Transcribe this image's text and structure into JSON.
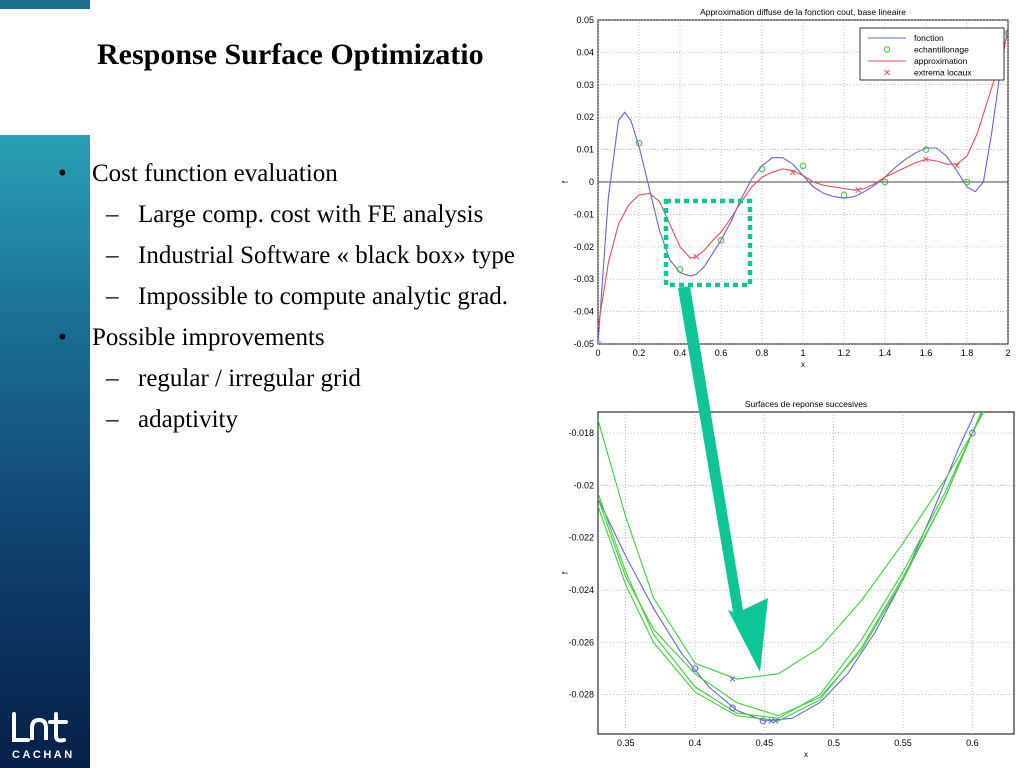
{
  "slide": {
    "title": "Response Surface Optimizatio",
    "bullets": [
      {
        "level": 1,
        "mark": "•",
        "text": "Cost function evaluation"
      },
      {
        "level": 2,
        "mark": "–",
        "text": "Large comp. cost with FE analysis"
      },
      {
        "level": 2,
        "mark": "–",
        "text": "Industrial Software « black box» type"
      },
      {
        "level": 2,
        "mark": "–",
        "text": "Impossible to compute analytic grad."
      },
      {
        "level": 1,
        "mark": "•",
        "text": "Possible improvements"
      },
      {
        "level": 2,
        "mark": "–",
        "text": "regular / irregular grid"
      },
      {
        "level": 2,
        "mark": "–",
        "text": "adaptivity"
      }
    ],
    "logo": {
      "glyph": "LMt",
      "caption": "CACHAN"
    }
  },
  "colors": {
    "sidebar_top": "#2aa0b6",
    "sidebar_bottom": "#061f48",
    "arrow": "#0dc596",
    "func": "#6666cc",
    "approx": "#e05060",
    "sample": "#44bb44",
    "surface": "#44cc44"
  },
  "chart_data": [
    {
      "type": "line",
      "title": "Approximation diffuse de la fonction cout, base lineaire",
      "xlabel": "x",
      "ylabel": "f",
      "xlim": [
        0,
        2
      ],
      "ylim": [
        -0.05,
        0.05
      ],
      "xticks": [
        0,
        0.2,
        0.4,
        0.6,
        0.8,
        1,
        1.2,
        1.4,
        1.6,
        1.8,
        2
      ],
      "xticklabels": [
        "0",
        "0.2",
        "0.4",
        "0.6",
        "0.8",
        "1",
        "1.2",
        "1.4",
        "1.6",
        "1.8",
        "2"
      ],
      "yticks": [
        -0.05,
        -0.04,
        -0.03,
        -0.02,
        -0.01,
        0,
        0.01,
        0.02,
        0.03,
        0.04,
        0.05
      ],
      "yticklabels": [
        "-0.05",
        "-0.04",
        "-0.03",
        "-0.02",
        "-0.01",
        "0",
        "0.01",
        "0.02",
        "0.03",
        "0.04",
        "0.05"
      ],
      "grid": true,
      "legend_position": "top-right",
      "series": [
        {
          "name": "fonction",
          "style": "line",
          "color": "#6666cc",
          "x": [
            0,
            0.05,
            0.1,
            0.13,
            0.16,
            0.2,
            0.25,
            0.3,
            0.35,
            0.4,
            0.45,
            0.48,
            0.52,
            0.56,
            0.6,
            0.65,
            0.7,
            0.75,
            0.8,
            0.85,
            0.9,
            0.95,
            1.0,
            1.05,
            1.1,
            1.15,
            1.2,
            1.25,
            1.3,
            1.35,
            1.4,
            1.45,
            1.5,
            1.55,
            1.6,
            1.65,
            1.7,
            1.75,
            1.8,
            1.84,
            1.88,
            1.92,
            1.96,
            2.0
          ],
          "y": [
            -0.05,
            -0.005,
            0.019,
            0.0215,
            0.019,
            0.011,
            -0.002,
            -0.015,
            -0.024,
            -0.028,
            -0.029,
            -0.0285,
            -0.026,
            -0.022,
            -0.018,
            -0.012,
            -0.005,
            0.001,
            0.005,
            0.0075,
            0.0075,
            0.0055,
            0.002,
            -0.0015,
            -0.0035,
            -0.0045,
            -0.005,
            -0.0045,
            -0.003,
            -0.001,
            0.0015,
            0.0045,
            0.007,
            0.009,
            0.0105,
            0.0105,
            0.008,
            0.0035,
            -0.0015,
            -0.003,
            0.0,
            0.015,
            0.033,
            0.048
          ]
        },
        {
          "name": "echantillonage",
          "style": "marker-circle",
          "color": "#44bb44",
          "x": [
            0,
            0.2,
            0.4,
            0.6,
            0.8,
            1.0,
            1.2,
            1.4,
            1.6,
            1.8,
            2.0
          ],
          "y": [
            -0.05,
            0.012,
            -0.027,
            -0.018,
            0.004,
            0.005,
            -0.004,
            0.0,
            0.01,
            0.0,
            0.046
          ]
        },
        {
          "name": "approximation",
          "style": "line",
          "color": "#e05060",
          "x": [
            0,
            0.05,
            0.1,
            0.15,
            0.2,
            0.25,
            0.3,
            0.35,
            0.4,
            0.45,
            0.48,
            0.52,
            0.56,
            0.6,
            0.65,
            0.7,
            0.75,
            0.8,
            0.85,
            0.9,
            0.95,
            1.0,
            1.05,
            1.1,
            1.15,
            1.2,
            1.25,
            1.3,
            1.35,
            1.4,
            1.45,
            1.5,
            1.55,
            1.6,
            1.65,
            1.7,
            1.75,
            1.8,
            1.85,
            1.9,
            1.95,
            2.0
          ],
          "y": [
            -0.045,
            -0.025,
            -0.013,
            -0.007,
            -0.004,
            -0.0035,
            -0.006,
            -0.013,
            -0.02,
            -0.0235,
            -0.023,
            -0.021,
            -0.018,
            -0.0155,
            -0.011,
            -0.006,
            -0.0015,
            0.0015,
            0.003,
            0.004,
            0.0035,
            0.002,
            0.0,
            -0.001,
            -0.0015,
            -0.002,
            -0.0025,
            -0.002,
            -0.0005,
            0.0015,
            0.003,
            0.0045,
            0.006,
            0.007,
            0.0065,
            0.0055,
            0.0055,
            0.008,
            0.015,
            0.025,
            0.035,
            0.046
          ]
        },
        {
          "name": "extrema locaux",
          "style": "marker-x",
          "color": "#e05060",
          "x": [
            0.48,
            0.95,
            1.27,
            1.6,
            1.75
          ],
          "y": [
            -0.023,
            0.003,
            -0.0025,
            0.007,
            0.005
          ]
        }
      ]
    },
    {
      "type": "line",
      "title": "Surfaces de reponse succesives",
      "xlabel": "x",
      "ylabel": "f",
      "xlim": [
        0.33,
        0.63
      ],
      "ylim": [
        -0.0295,
        -0.0172
      ],
      "xticks": [
        0.35,
        0.4,
        0.45,
        0.5,
        0.55,
        0.6
      ],
      "xticklabels": [
        "0.35",
        "0.4",
        "0.45",
        "0.5",
        "0.55",
        "0.6"
      ],
      "yticks": [
        -0.028,
        -0.026,
        -0.024,
        -0.022,
        -0.02,
        -0.018
      ],
      "yticklabels": [
        "-0.028",
        "-0.026",
        "-0.024",
        "-0.022",
        "-0.02",
        "-0.018"
      ],
      "grid": true,
      "series": [
        {
          "style": "line",
          "color": "#6666cc",
          "x": [
            0.33,
            0.35,
            0.37,
            0.39,
            0.41,
            0.43,
            0.45,
            0.47,
            0.49,
            0.51,
            0.53,
            0.55,
            0.57,
            0.59,
            0.61,
            0.63
          ],
          "y": [
            -0.0205,
            -0.0227,
            -0.0247,
            -0.0264,
            -0.0277,
            -0.0286,
            -0.029,
            -0.0289,
            -0.0283,
            -0.0272,
            -0.0256,
            -0.0236,
            -0.0212,
            -0.0186,
            -0.0163,
            -0.0143
          ]
        },
        {
          "style": "line",
          "color": "#44cc44",
          "x": [
            0.33,
            0.35,
            0.37,
            0.4,
            0.43,
            0.46,
            0.49,
            0.52,
            0.55,
            0.58,
            0.6,
            0.62
          ],
          "y": [
            -0.0175,
            -0.0212,
            -0.0243,
            -0.0268,
            -0.0274,
            -0.0272,
            -0.0262,
            -0.0244,
            -0.0222,
            -0.0198,
            -0.018,
            -0.016
          ]
        },
        {
          "style": "line",
          "color": "#44cc44",
          "x": [
            0.33,
            0.35,
            0.37,
            0.4,
            0.43,
            0.46,
            0.49,
            0.52,
            0.55,
            0.58,
            0.6,
            0.62
          ],
          "y": [
            -0.0205,
            -0.0235,
            -0.0255,
            -0.0272,
            -0.0283,
            -0.0288,
            -0.0281,
            -0.0263,
            -0.0236,
            -0.0205,
            -0.018,
            -0.0155
          ]
        },
        {
          "style": "line",
          "color": "#44cc44",
          "x": [
            0.33,
            0.35,
            0.37,
            0.4,
            0.43,
            0.46,
            0.49,
            0.52,
            0.55,
            0.58,
            0.6,
            0.62
          ],
          "y": [
            -0.0203,
            -0.0233,
            -0.0257,
            -0.0277,
            -0.0287,
            -0.0289,
            -0.028,
            -0.0259,
            -0.0233,
            -0.0203,
            -0.018,
            -0.0158
          ]
        },
        {
          "style": "line",
          "color": "#44cc44",
          "x": [
            0.33,
            0.35,
            0.37,
            0.4,
            0.43,
            0.46,
            0.49,
            0.52,
            0.55,
            0.58,
            0.6,
            0.62
          ],
          "y": [
            -0.0208,
            -0.0238,
            -0.026,
            -0.0279,
            -0.0288,
            -0.029,
            -0.0282,
            -0.0262,
            -0.0235,
            -0.0205,
            -0.018,
            -0.0157
          ]
        },
        {
          "style": "marker-circle",
          "color": "#6666cc",
          "x": [
            0.4,
            0.427,
            0.449,
            0.6
          ],
          "y": [
            -0.027,
            -0.0285,
            -0.029,
            -0.018
          ]
        },
        {
          "style": "marker-x",
          "color": "#6666cc",
          "x": [
            0.427,
            0.455,
            0.458
          ],
          "y": [
            -0.0274,
            -0.029,
            -0.029
          ]
        }
      ]
    }
  ]
}
